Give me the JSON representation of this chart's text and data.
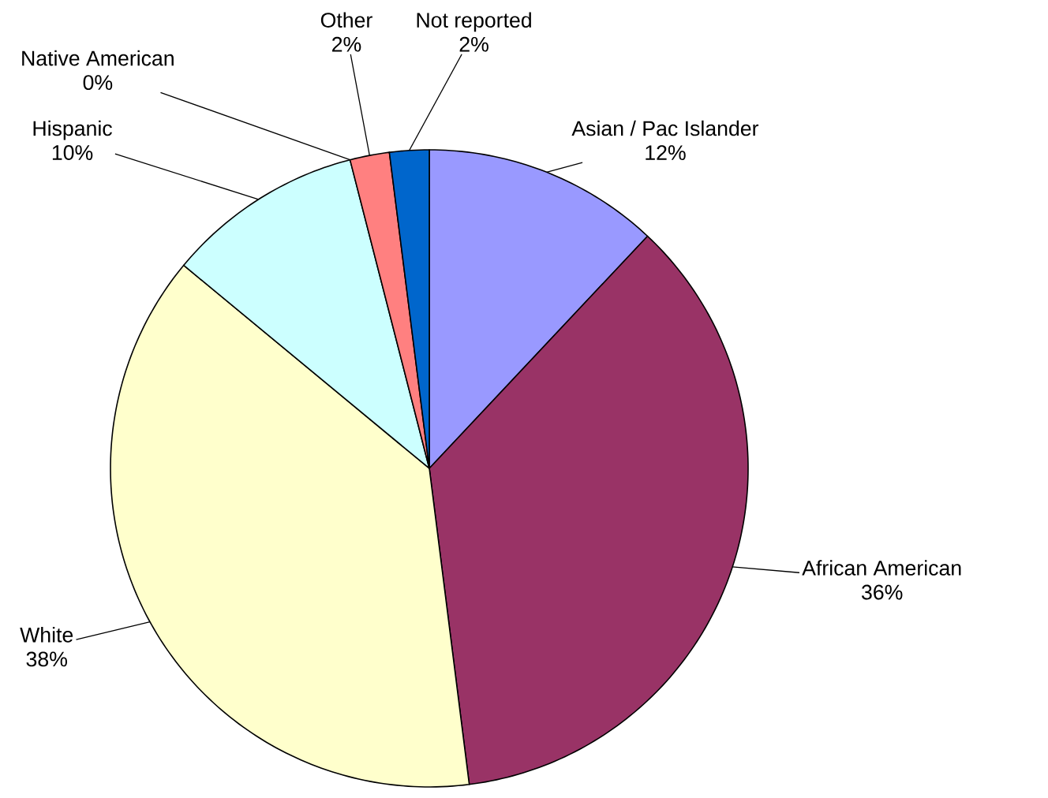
{
  "chart_data": {
    "type": "pie",
    "categories": [
      "Asian / Pac Islander",
      "African American",
      "White",
      "Hispanic",
      "Native American",
      "Other",
      "Not reported"
    ],
    "values": [
      12,
      36,
      38,
      10,
      0,
      2,
      2
    ],
    "colors": [
      "#9999ff",
      "#993366",
      "#ffffcc",
      "#ccffff",
      "#660066",
      "#ff8080",
      "#0066cc"
    ],
    "value_labels": [
      "12%",
      "36%",
      "38%",
      "10%",
      "0%",
      "2%",
      "2%"
    ]
  }
}
